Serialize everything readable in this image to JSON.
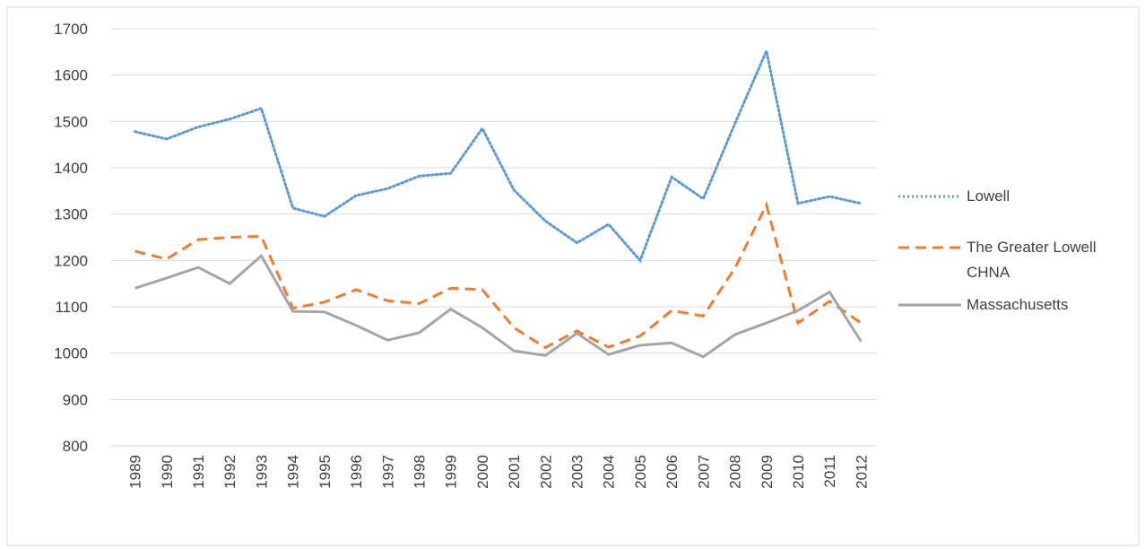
{
  "chart_data": {
    "type": "line",
    "categories": [
      "1989",
      "1990",
      "1991",
      "1992",
      "1993",
      "1994",
      "1995",
      "1996",
      "1997",
      "1998",
      "1999",
      "2000",
      "2001",
      "2002",
      "2003",
      "2004",
      "2005",
      "2006",
      "2007",
      "2008",
      "2009",
      "2010",
      "2011",
      "2012"
    ],
    "series": [
      {
        "name": "Lowell",
        "color": "#5b9bd5",
        "dash": "dotted",
        "values": [
          1478,
          1462,
          1488,
          1505,
          1528,
          1313,
          1295,
          1340,
          1355,
          1382,
          1388,
          1485,
          1352,
          1285,
          1238,
          1278,
          1200,
          1380,
          1333,
          1495,
          1652,
          1323,
          1338,
          1323
        ]
      },
      {
        "name": "The Greater Lowell CHNA",
        "color": "#ed7d31",
        "dash": "dashed",
        "values": [
          1220,
          1203,
          1245,
          1250,
          1252,
          1097,
          1110,
          1137,
          1113,
          1107,
          1140,
          1137,
          1055,
          1012,
          1048,
          1013,
          1037,
          1092,
          1080,
          1183,
          1320,
          1065,
          1112,
          1065
        ]
      },
      {
        "name": "Massachusetts",
        "color": "#a5a5a5",
        "dash": "solid",
        "values": [
          1140,
          1162,
          1185,
          1150,
          1210,
          1090,
          1089,
          1060,
          1028,
          1044,
          1095,
          1055,
          1005,
          995,
          1043,
          997,
          1017,
          1022,
          992,
          1040,
          1065,
          1092,
          1132,
          1025
        ]
      }
    ],
    "ylim": [
      800,
      1700
    ],
    "yticks": [
      800,
      900,
      1000,
      1100,
      1200,
      1300,
      1400,
      1500,
      1600,
      1700
    ],
    "grid": true
  }
}
